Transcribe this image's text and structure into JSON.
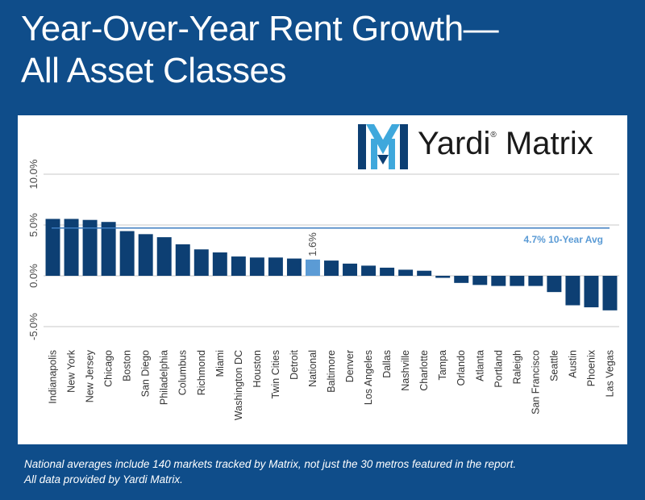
{
  "title": {
    "line1": "Year-Over-Year Rent Growth—",
    "line2": "All Asset Classes"
  },
  "logo": {
    "brand": "Yardi",
    "product": "Matrix",
    "mark": "®"
  },
  "footnote": {
    "line1": "National averages include 140 markets tracked by Matrix, not just the 30 metros featured in the report.",
    "line2": "All data provided by Yardi Matrix."
  },
  "colors": {
    "background": "#0f4d8a",
    "bar": "#0d3f73",
    "national_bar": "#5b9bd5",
    "avg_line": "#3d7cc0",
    "avg_label": "#5b9bd5",
    "logo_mark_dark": "#0d3f73",
    "logo_mark_light": "#3fa8dc"
  },
  "chart_data": {
    "type": "bar",
    "categories": [
      "Indianapolis",
      "New York",
      "New Jersey",
      "Chicago",
      "Boston",
      "San Diego",
      "Philadelphia",
      "Columbus",
      "Richmond",
      "Miami",
      "Washington DC",
      "Houston",
      "Twin Cities",
      "Detroit",
      "National",
      "Baltimore",
      "Denver",
      "Los Angeles",
      "Dallas",
      "Nashville",
      "Charlotte",
      "Tampa",
      "Orlando",
      "Atlanta",
      "Portland",
      "Raleigh",
      "San Francisco",
      "Seattle",
      "Austin",
      "Phoenix",
      "Las Vegas"
    ],
    "values": [
      5.6,
      5.6,
      5.5,
      5.3,
      4.4,
      4.1,
      3.8,
      3.1,
      2.6,
      2.3,
      1.9,
      1.8,
      1.8,
      1.7,
      1.6,
      1.5,
      1.2,
      1.0,
      0.8,
      0.6,
      0.5,
      -0.2,
      -0.7,
      -0.9,
      -1.0,
      -1.0,
      -1.0,
      -1.6,
      -2.9,
      -3.1,
      -3.4
    ],
    "highlight": "National",
    "data_labels": [
      {
        "category": "National",
        "text": "1.6%"
      }
    ],
    "yticks": [
      "10.0%",
      "5.0%",
      "0.0%",
      "-5.0%"
    ],
    "ytick_values": [
      10,
      5,
      0,
      -5
    ],
    "ylim": [
      -5,
      10
    ],
    "reference_line": {
      "value": 4.7,
      "label": "4.7% 10-Year Avg"
    },
    "grid": true,
    "xlabel": "",
    "ylabel": ""
  }
}
